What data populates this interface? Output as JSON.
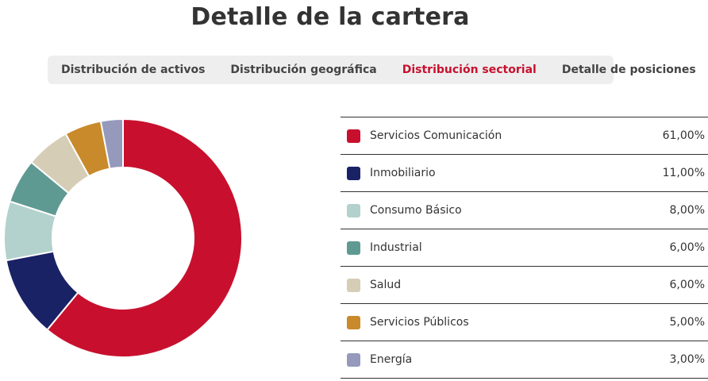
{
  "page": {
    "title": "Detalle de la cartera"
  },
  "tabs": [
    {
      "label": "Distribución de activos",
      "active": false
    },
    {
      "label": "Distribución geográfica",
      "active": false
    },
    {
      "label": "Distribución sectorial",
      "active": true
    },
    {
      "label": "Detalle de posiciones",
      "active": false
    }
  ],
  "colors": {
    "accent": "#c8102e"
  },
  "chart_data": {
    "type": "pie",
    "variant": "donut",
    "categories": [
      "Servicios Comunicación",
      "Inmobiliario",
      "Consumo Básico",
      "Industrial",
      "Salud",
      "Servicios Públicos",
      "Energía"
    ],
    "values": [
      61,
      11,
      8,
      6,
      6,
      5,
      3
    ],
    "value_labels": [
      "61,00%",
      "11,00%",
      "8,00%",
      "6,00%",
      "6,00%",
      "5,00%",
      "3,00%"
    ],
    "colors": [
      "#c8102e",
      "#1a2266",
      "#b3d1cd",
      "#5f9a92",
      "#d6cdb6",
      "#c98a2b",
      "#9599bc"
    ],
    "unit": "%",
    "legend_placement": "right"
  }
}
